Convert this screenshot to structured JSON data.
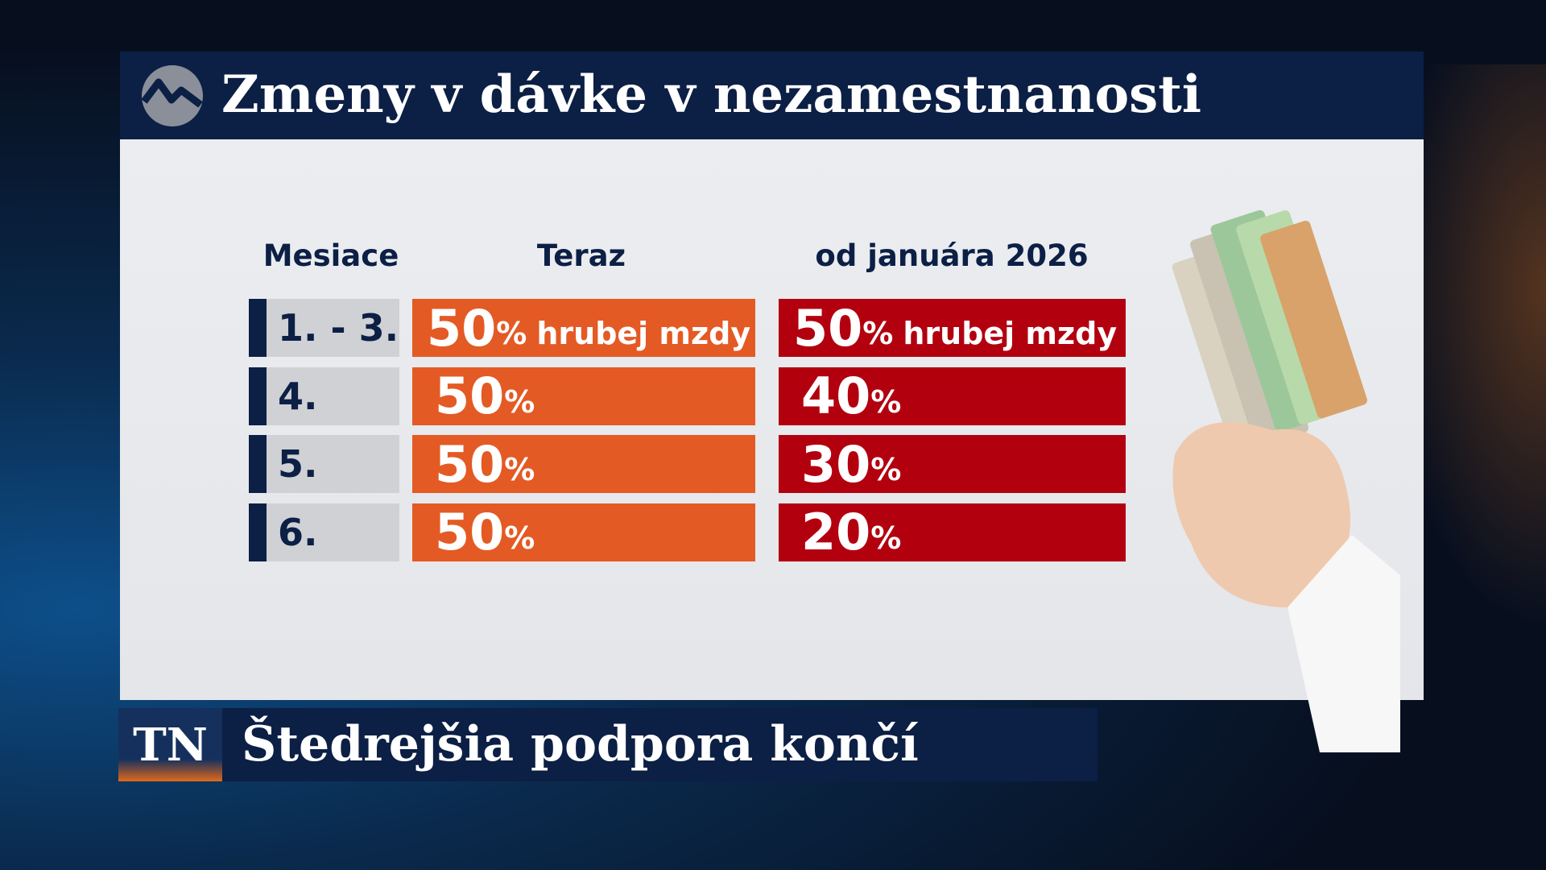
{
  "header": {
    "title": "Zmeny v dávke v nezamestnanosti"
  },
  "table": {
    "columns": [
      "Mesiace",
      "Teraz",
      "od januára 2026"
    ],
    "rows": [
      {
        "month": "1. - 3.",
        "now": {
          "number": 50,
          "unit": "%",
          "note": "hrubej mzdy"
        },
        "future": {
          "number": 50,
          "unit": "%",
          "note": "hrubej mzdy"
        }
      },
      {
        "month": "4.",
        "now": {
          "number": 50,
          "unit": "%"
        },
        "future": {
          "number": 40,
          "unit": "%"
        }
      },
      {
        "month": "5.",
        "now": {
          "number": 50,
          "unit": "%"
        },
        "future": {
          "number": 30,
          "unit": "%"
        }
      },
      {
        "month": "6.",
        "now": {
          "number": 50,
          "unit": "%"
        },
        "future": {
          "number": 20,
          "unit": "%"
        }
      }
    ]
  },
  "banner": {
    "logo": "TN",
    "headline": "Štedrejšia podpora končí"
  }
}
